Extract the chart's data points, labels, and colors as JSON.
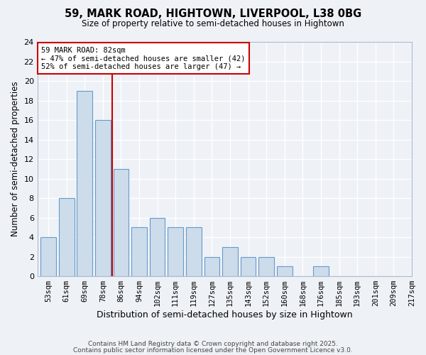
{
  "title1": "59, MARK ROAD, HIGHTOWN, LIVERPOOL, L38 0BG",
  "title2": "Size of property relative to semi-detached houses in Hightown",
  "xlabel": "Distribution of semi-detached houses by size in Hightown",
  "ylabel": "Number of semi-detached properties",
  "bins": [
    "53sqm",
    "61sqm",
    "69sqm",
    "78sqm",
    "86sqm",
    "94sqm",
    "102sqm",
    "111sqm",
    "119sqm",
    "127sqm",
    "135sqm",
    "143sqm",
    "152sqm",
    "160sqm",
    "168sqm",
    "176sqm",
    "185sqm",
    "193sqm",
    "201sqm",
    "209sqm",
    "217sqm"
  ],
  "values": [
    4,
    8,
    19,
    16,
    11,
    5,
    6,
    5,
    5,
    2,
    3,
    2,
    2,
    1,
    0,
    1,
    0,
    0,
    0,
    0
  ],
  "bar_color": "#cddcea",
  "bar_edge_color": "#6699cc",
  "vline_x": 3.5,
  "vline_color": "#cc0000",
  "annotation_text": "59 MARK ROAD: 82sqm\n← 47% of semi-detached houses are smaller (42)\n52% of semi-detached houses are larger (47) →",
  "annotation_box_color": "#ffffff",
  "annotation_box_edge": "#cc0000",
  "ylim": [
    0,
    24
  ],
  "yticks": [
    0,
    2,
    4,
    6,
    8,
    10,
    12,
    14,
    16,
    18,
    20,
    22,
    24
  ],
  "footer1": "Contains HM Land Registry data © Crown copyright and database right 2025.",
  "footer2": "Contains public sector information licensed under the Open Government Licence v3.0.",
  "background_color": "#eef2f7",
  "grid_color": "#ffffff"
}
